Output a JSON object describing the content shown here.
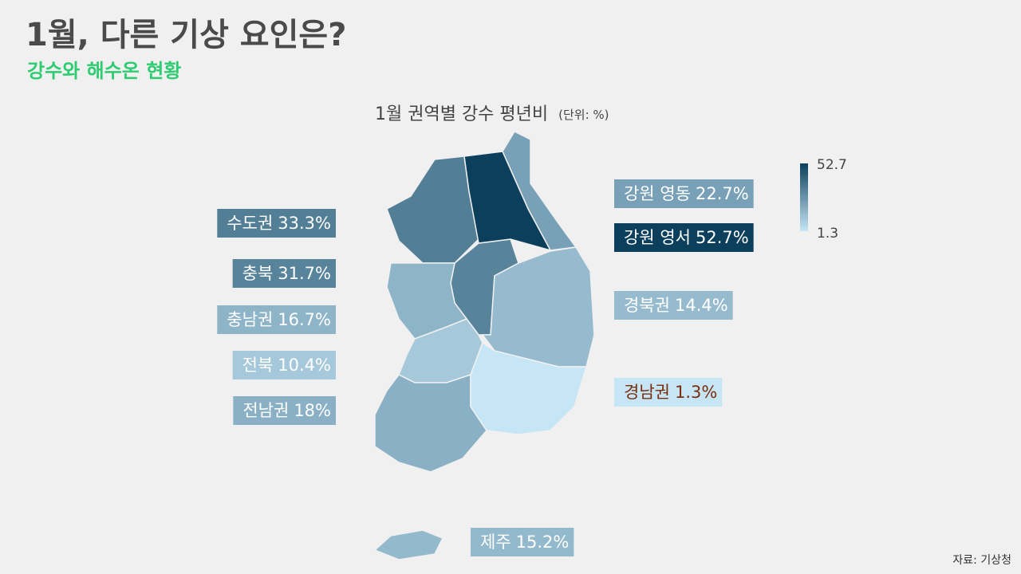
{
  "header": {
    "title": "1월, 다른 기상 요인은?",
    "subtitle": "강수와 해수온 현황"
  },
  "map": {
    "title": "1월 권역별 강수 평년비",
    "unit": "(단위: %)",
    "color_low": "#c6e6f6",
    "color_high": "#0b3f5c",
    "colorbar": {
      "max": 52.7,
      "min": 1.3
    },
    "regions": [
      {
        "name": "수도권",
        "value": 33.3,
        "value_label": "33.3%"
      },
      {
        "name": "충북",
        "value": 31.7,
        "value_label": "31.7%"
      },
      {
        "name": "충남권",
        "value": 16.7,
        "value_label": "16.7%"
      },
      {
        "name": "전북",
        "value": 10.4,
        "value_label": "10.4%"
      },
      {
        "name": "전남권",
        "value": 18,
        "value_label": "18%"
      },
      {
        "name": "강원 영동",
        "value": 22.7,
        "value_label": "22.7%"
      },
      {
        "name": "강원 영서",
        "value": 52.7,
        "value_label": "52.7%"
      },
      {
        "name": "경북권",
        "value": 14.4,
        "value_label": "14.4%"
      },
      {
        "name": "경남권",
        "value": 1.3,
        "value_label": "1.3%"
      },
      {
        "name": "제주",
        "value": 15.2,
        "value_label": "15.2%"
      }
    ]
  },
  "source": "자료: 기상청"
}
